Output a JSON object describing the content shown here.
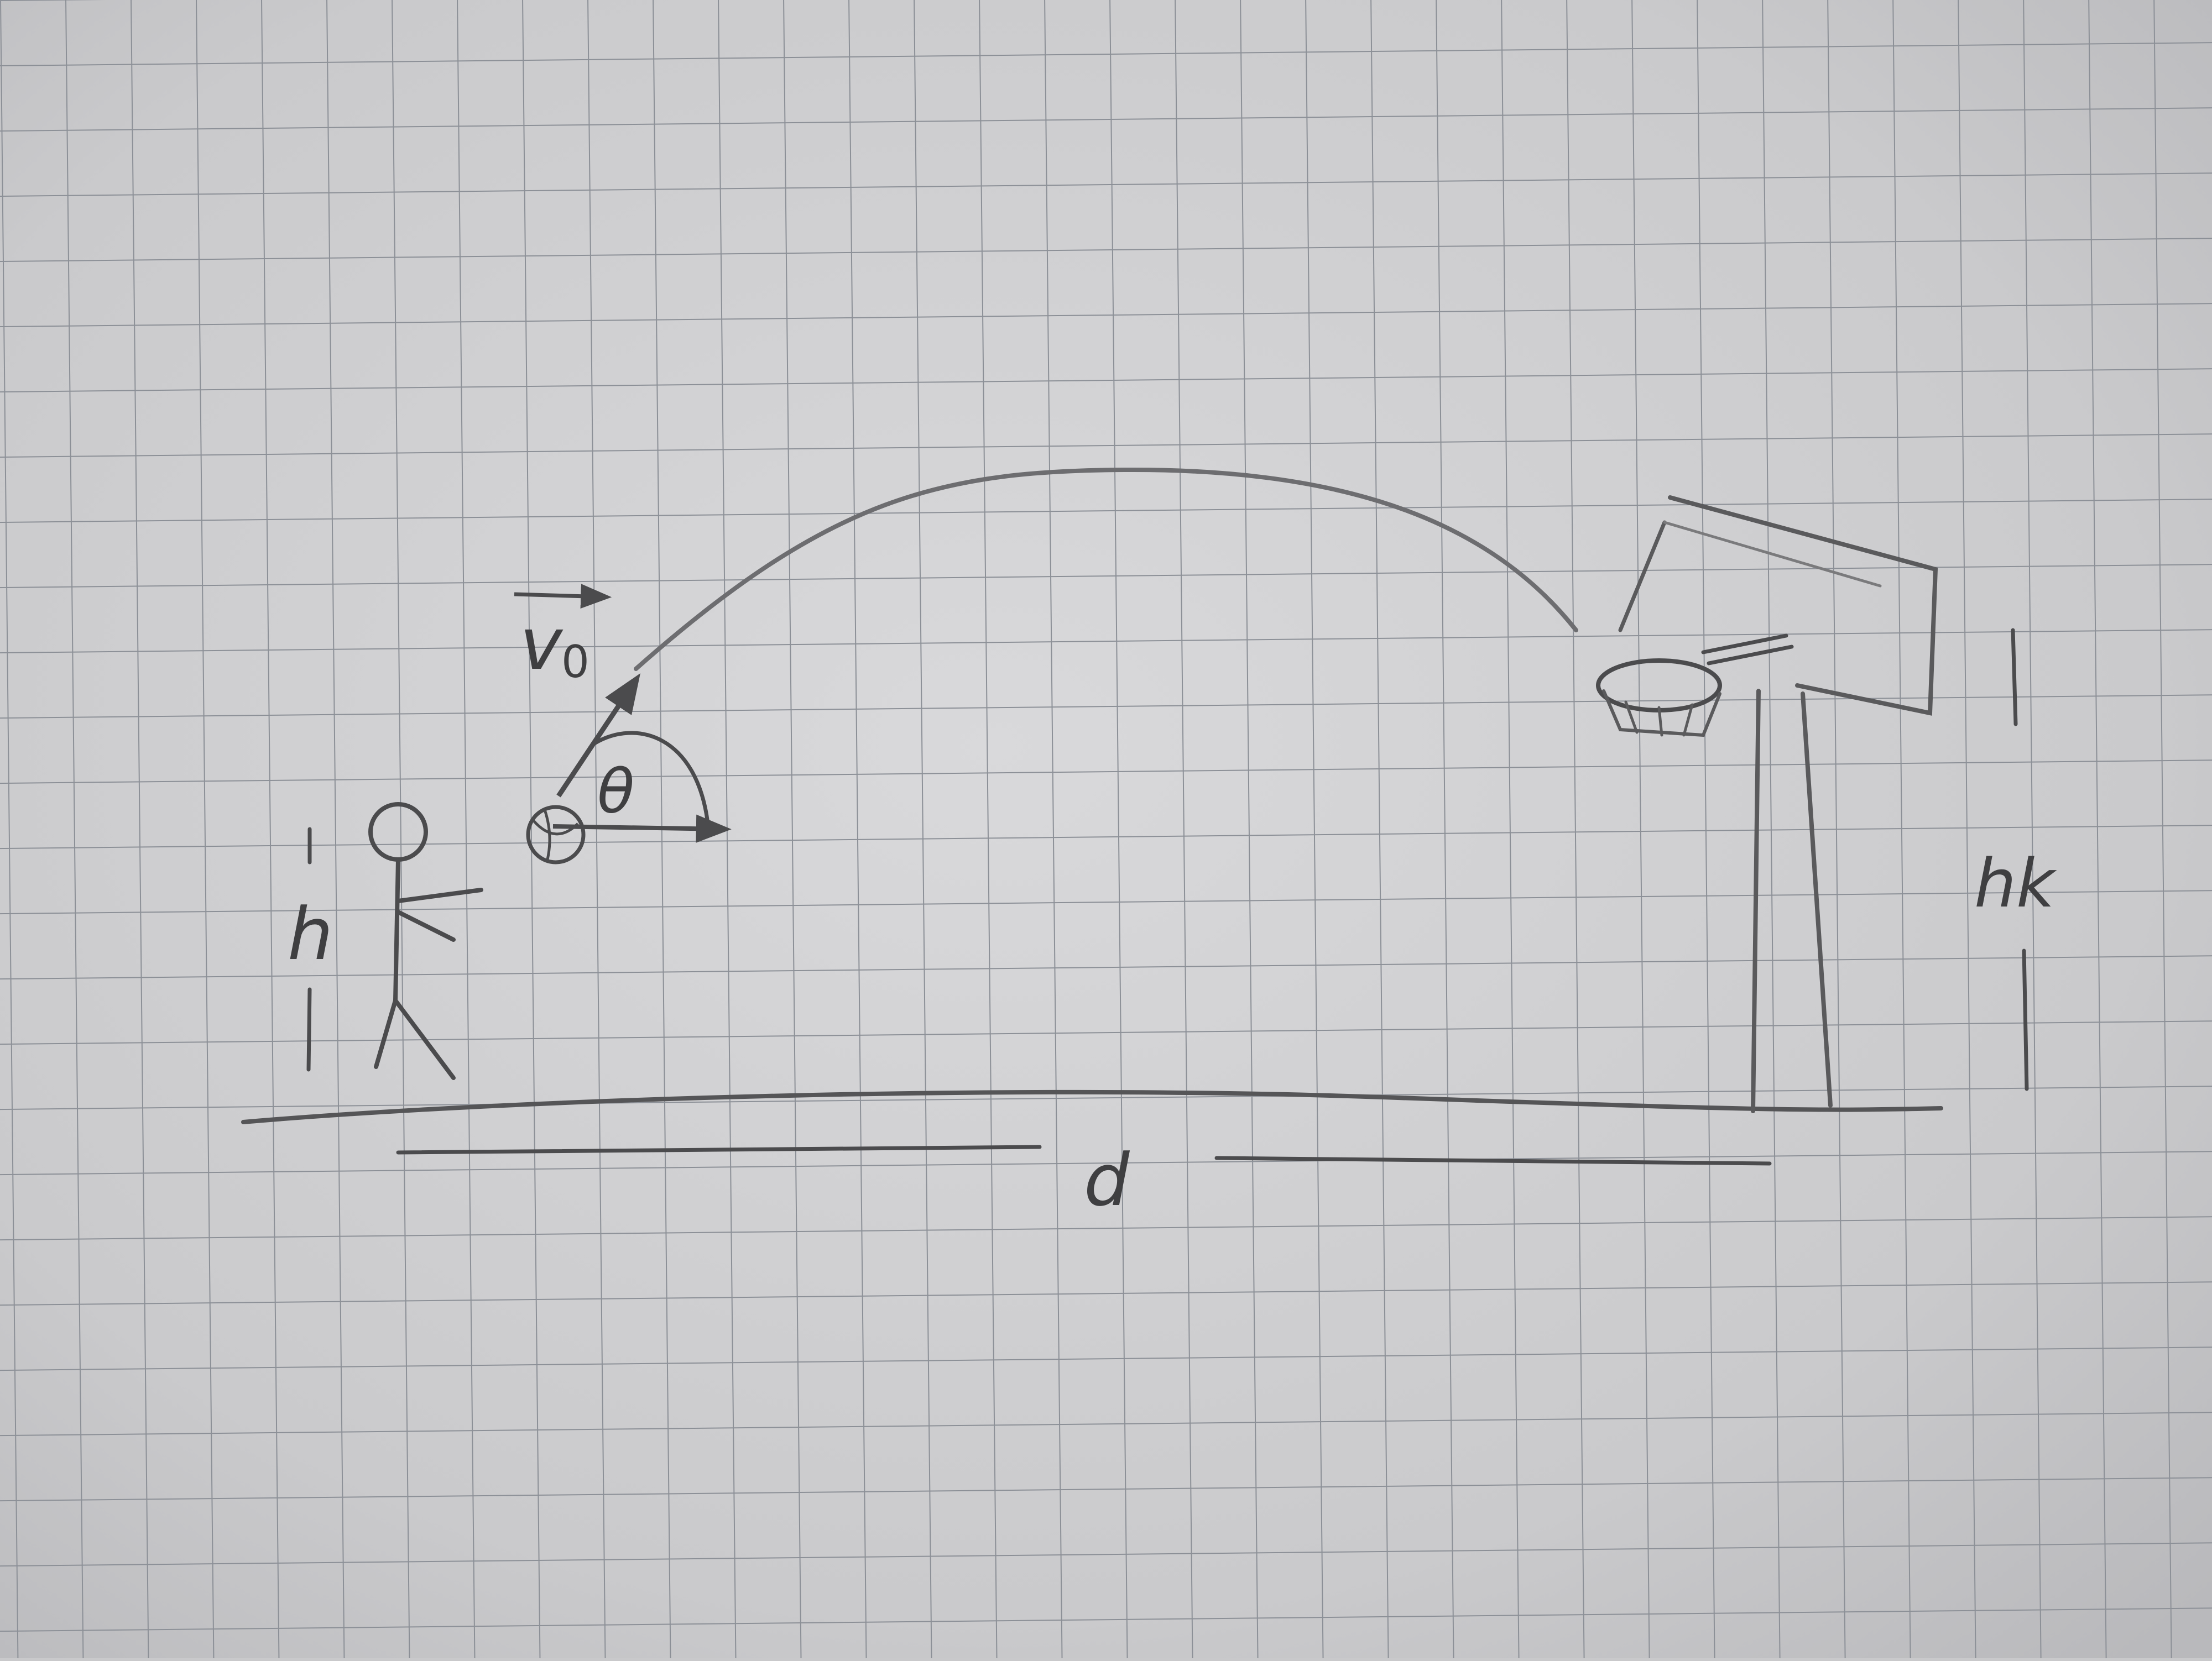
{
  "labels": {
    "velocity": "v⃗0",
    "velocity_base": "v",
    "velocity_sub": "0",
    "angle": "θ",
    "shooter_height": "h",
    "hoop_height": "hk",
    "distance": "d"
  },
  "colors": {
    "paper": "#cfcfd1",
    "grid": "#8f9399",
    "pencil": "#4b4b4d",
    "pencil_light": "#7a7a7c"
  },
  "icons": {
    "shooter": "stick-figure-icon",
    "ball": "basketball-icon",
    "hoop": "basketball-hoop-icon"
  }
}
